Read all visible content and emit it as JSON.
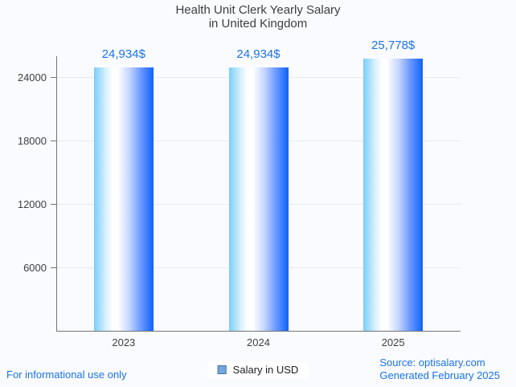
{
  "title": {
    "line1": "Health Unit Clerk Yearly Salary",
    "line2": "in United Kingdom"
  },
  "chart_data": {
    "type": "bar",
    "title": "Health Unit Clerk Yearly Salary in United Kingdom",
    "categories": [
      "2023",
      "2024",
      "2025"
    ],
    "values": [
      24934,
      24934,
      25778
    ],
    "value_labels": [
      "24,934$",
      "24,934$",
      "25,778$"
    ],
    "series": [
      {
        "name": "Salary in USD",
        "values": [
          24934,
          24934,
          25778
        ]
      }
    ],
    "xlabel": "",
    "ylabel": "",
    "yticks": [
      6000,
      12000,
      18000,
      24000
    ],
    "ylim": [
      0,
      26000
    ],
    "grid": "horizontal",
    "legend_position": "bottom-center"
  },
  "legend": {
    "label": "Salary in USD"
  },
  "footer": {
    "left_note": "For informational use only",
    "source_line1": "Source: optisalary.com",
    "source_line2": "Generated February 2025"
  },
  "colors": {
    "accent_blue": "#1a73e8",
    "bar_gradient_start": "#79cef9",
    "bar_gradient_mid": "#ffffff",
    "bar_gradient_end": "#0d63fb",
    "axis": "#70757a",
    "gridline": "#e8eaed",
    "text": "#3c4043",
    "background": "#fafbfe",
    "legend_marker_fill": "#72a7e0",
    "legend_marker_border": "#4d7094"
  }
}
